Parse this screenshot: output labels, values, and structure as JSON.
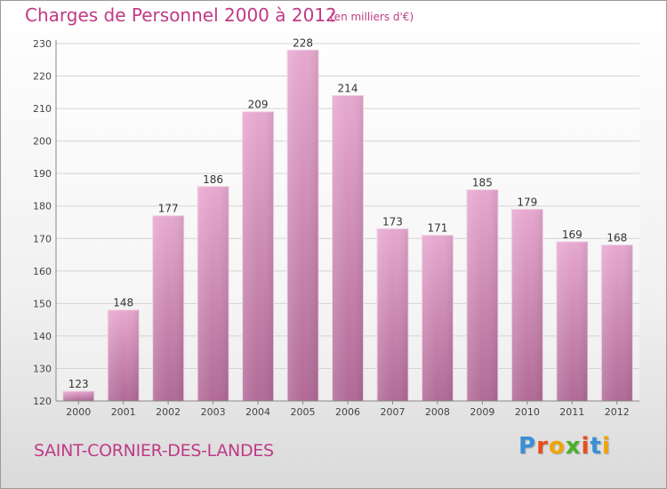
{
  "header": {
    "title": "Charges de Personnel 2000 à 2012",
    "subtitle": "(en milliers d'€)"
  },
  "footer": {
    "commune": "SAINT-CORNIER-DES-LANDES",
    "logo_letters": [
      "P",
      "r",
      "o",
      "x",
      "i",
      "t",
      "i"
    ],
    "logo_colors": [
      "#3a8fd6",
      "#e94e1b",
      "#f0a500",
      "#4caf2a",
      "#e94e1b",
      "#3a8fd6",
      "#f0a500"
    ]
  },
  "chart_data": {
    "type": "bar",
    "title": "Charges de Personnel 2000 à 2012",
    "subtitle": "(en milliers d'€)",
    "categories": [
      "2000",
      "2001",
      "2002",
      "2003",
      "2004",
      "2005",
      "2006",
      "2007",
      "2008",
      "2009",
      "2010",
      "2011",
      "2012"
    ],
    "values": [
      123,
      148,
      177,
      186,
      209,
      228,
      214,
      173,
      171,
      185,
      179,
      169,
      168
    ],
    "ylim": [
      120,
      230
    ],
    "yticks": [
      120,
      130,
      140,
      150,
      160,
      170,
      180,
      190,
      200,
      210,
      220,
      230
    ],
    "grid": true,
    "bar_color": "#d987b8",
    "data_labels": true
  }
}
